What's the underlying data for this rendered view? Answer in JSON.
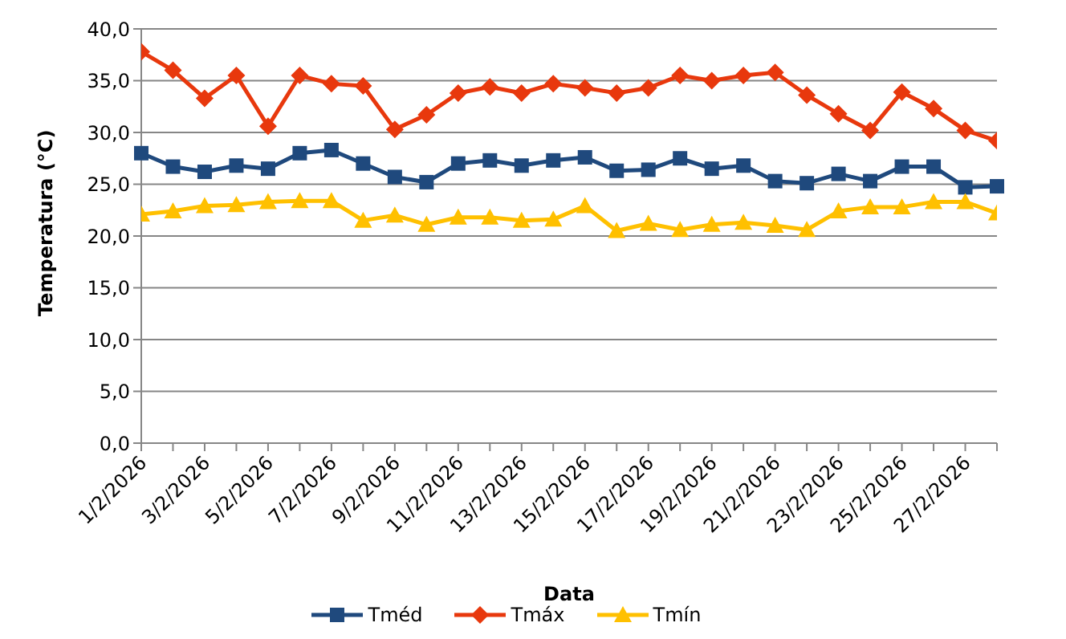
{
  "chart_data": {
    "type": "line",
    "xlabel": "Data",
    "ylabel": "Temperatura (°C)",
    "categories": [
      "1/2/2026",
      null,
      "3/2/2026",
      null,
      "5/2/2026",
      null,
      "7/2/2026",
      null,
      "9/2/2026",
      null,
      "11/2/2026",
      null,
      "13/2/2026",
      null,
      "15/2/2026",
      null,
      "17/2/2026",
      null,
      "19/2/2026",
      null,
      "21/2/2026",
      null,
      "23/2/2026",
      null,
      "25/2/2026",
      null,
      "27/2/2026",
      null
    ],
    "series": [
      {
        "name": "Tméd",
        "color": "#1f497d",
        "marker": "square",
        "values": [
          28.0,
          26.7,
          26.2,
          26.8,
          26.5,
          28.0,
          28.3,
          27.0,
          25.7,
          25.2,
          27.0,
          27.3,
          26.8,
          27.3,
          27.6,
          26.3,
          26.4,
          27.5,
          26.5,
          26.8,
          25.3,
          25.1,
          26.0,
          25.3,
          26.7,
          26.7,
          24.7,
          24.8
        ]
      },
      {
        "name": "Tmáx",
        "color": "#e8380d",
        "marker": "diamond",
        "values": [
          37.8,
          36.0,
          33.3,
          35.5,
          30.6,
          35.5,
          34.7,
          34.5,
          30.3,
          31.7,
          33.8,
          34.4,
          33.8,
          34.7,
          34.3,
          33.8,
          34.3,
          35.5,
          35.0,
          35.5,
          35.8,
          33.6,
          31.8,
          30.2,
          33.9,
          32.3,
          30.2,
          29.2
        ]
      },
      {
        "name": "Tmín",
        "color": "#ffc000",
        "marker": "triangle",
        "values": [
          22.1,
          22.4,
          22.9,
          23.0,
          23.3,
          23.4,
          23.4,
          21.5,
          22.0,
          21.1,
          21.8,
          21.8,
          21.5,
          21.6,
          22.9,
          20.5,
          21.2,
          20.6,
          21.1,
          21.3,
          21.0,
          20.6,
          22.4,
          22.8,
          22.8,
          23.3,
          23.3,
          22.2
        ]
      }
    ],
    "ylim": [
      0,
      40
    ],
    "yticks": [
      {
        "value": 0,
        "label": "0,0"
      },
      {
        "value": 5,
        "label": "5,0"
      },
      {
        "value": 10,
        "label": "10,0"
      },
      {
        "value": 15,
        "label": "15,0"
      },
      {
        "value": 20,
        "label": "20,0"
      },
      {
        "value": 25,
        "label": "25,0"
      },
      {
        "value": 30,
        "label": "30,0"
      },
      {
        "value": 35,
        "label": "35,0"
      },
      {
        "value": 40,
        "label": "40,0"
      }
    ],
    "grid": "y",
    "legend": "bottom",
    "line_style": "solid"
  }
}
